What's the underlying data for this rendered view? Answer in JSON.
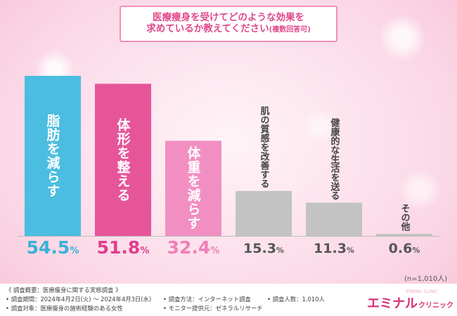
{
  "title": {
    "line1": "医療痩身を受けてどのような効果を",
    "line2": "求めているか教えてください",
    "line2_suffix": "(複数回答可)"
  },
  "sample_note": "(n=1,010人)",
  "chart_data": {
    "type": "bar",
    "categories": [
      "脂肪を減らす",
      "体形を整える",
      "体重を減らす",
      "肌の質感を改善する",
      "健康的な生活を送る",
      "その他"
    ],
    "values": [
      54.5,
      51.8,
      32.4,
      15.3,
      11.3,
      0.6
    ],
    "value_labels": [
      {
        "num": "54.5",
        "unit": "%"
      },
      {
        "num": "51.8",
        "unit": "%"
      },
      {
        "num": "32.4",
        "unit": "%"
      },
      {
        "num": "15.3",
        "unit": "%"
      },
      {
        "num": "11.3",
        "unit": "%"
      },
      {
        "num": "0.6",
        "unit": "%"
      }
    ],
    "colors": [
      "#4bbde0",
      "#e6559a",
      "#f28fc2",
      "#c3c3c3",
      "#c3c3c3",
      "#c3c3c3"
    ],
    "value_colors": [
      "#3ab0d8",
      "#df3f8c",
      "#f07fb8",
      "#555555",
      "#555555",
      "#555555"
    ],
    "ylim": [
      0,
      54.5
    ],
    "grid": false
  },
  "footer": {
    "overview": "《 調査概要：医療痩身に関する実態調査 》",
    "period": "• 調査期間：2024年4月2日(火) ～ 2024年4月3日(水)",
    "target": "• 調査対象：医療痩身の施術経験のある女性",
    "method": "• 調査方法：インターネット調査",
    "count": "• 調査人数：1,010人",
    "provider": "• モニター提供元：ゼネラルリサーチ",
    "logo_main": "エミナル",
    "logo_sub": "クリニック",
    "logo_deco": "EMINAL CLINIC"
  }
}
